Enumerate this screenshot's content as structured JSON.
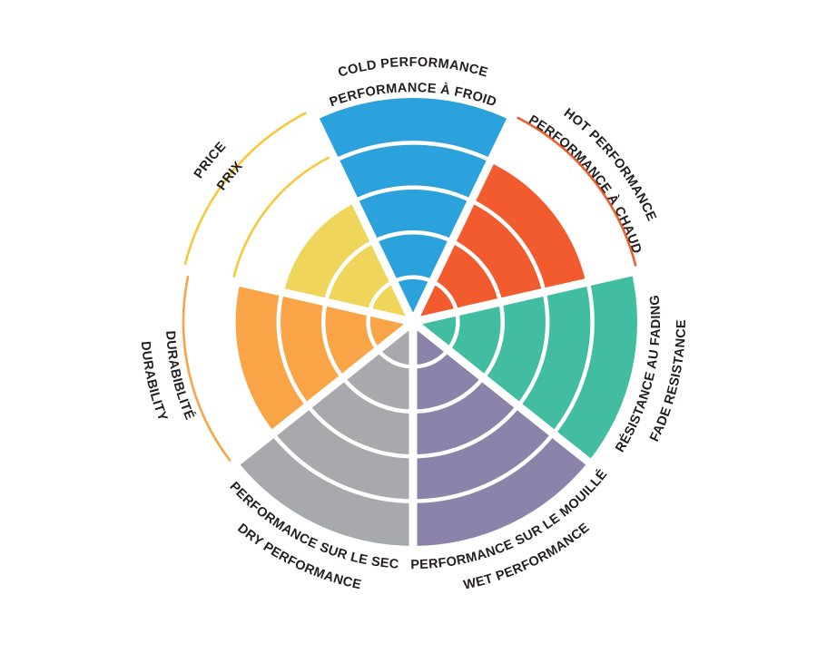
{
  "page": {
    "background_color": "#FFFFFF",
    "text_color": "#231F20",
    "grid_color": "#FFFFFF"
  },
  "chart_data": {
    "type": "radar",
    "variant": "segmented-wedge-wheel",
    "title": "",
    "scale": {
      "min": 0,
      "max": 5,
      "ring_step": 1,
      "grid": true,
      "grid_style": "concentric-rings-and-spokes"
    },
    "legend_position": "labels-around-rim",
    "values": [
      5,
      4,
      5,
      5,
      5,
      4,
      3
    ],
    "categories": [
      {
        "key": "cold-performance",
        "label_primary": "COLD PERFORMANCE",
        "label_secondary": "PERFORMANCE À FROID",
        "value": 5,
        "color": "#2BA2DB",
        "label_flipped": false
      },
      {
        "key": "hot-performance",
        "label_primary": "HOT PERFORMANCE",
        "label_secondary": "PERFORMANCE À CHAUD",
        "value": 4,
        "color": "#F15B2D",
        "label_flipped": false
      },
      {
        "key": "fade-resistance",
        "label_primary": "RÉSISTANCE AU FADING",
        "label_secondary": "FADE RESISTANCE",
        "value": 5,
        "color": "#42BDA2",
        "label_flipped": true
      },
      {
        "key": "wet-performance",
        "label_primary": "PERFORMANCE SUR LE MOUILLÉ",
        "label_secondary": "WET PERFORMANCE",
        "value": 5,
        "color": "#8B83AA",
        "label_flipped": true
      },
      {
        "key": "dry-performance",
        "label_primary": "PERFORMANCE SUR LE SEC",
        "label_secondary": "DRY PERFORMANCE",
        "value": 5,
        "color": "#A7A9AC",
        "label_flipped": true
      },
      {
        "key": "durability",
        "label_primary": "DURABIBLITÉ",
        "label_secondary": "DURABILITY",
        "value": 4,
        "color": "#F8A447",
        "label_flipped": true
      },
      {
        "key": "price",
        "label_primary": "PRICE",
        "label_secondary": "PRIX",
        "value": 3,
        "color": "#EFD65B",
        "arc_color": "#F5C93E",
        "label_flipped": false
      }
    ]
  }
}
